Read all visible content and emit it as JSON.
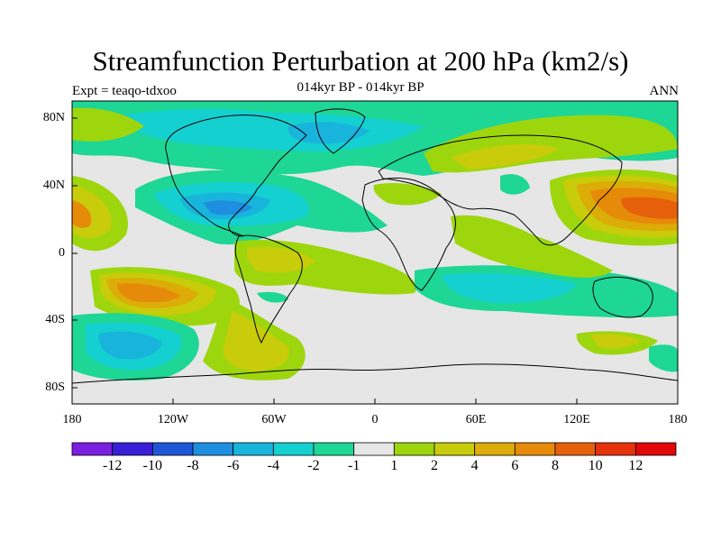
{
  "title": "Streamfunction Perturbation at 200 hPa (km2/s)",
  "subtitle": "014kyr BP - 014kyr BP",
  "experiment": "Expt = teaqo-tdxoo",
  "season": "ANN",
  "lat_labels": [
    "80N",
    "40N",
    "0",
    "40S",
    "80S"
  ],
  "lon_labels": [
    "180",
    "120W",
    "60W",
    "0",
    "60E",
    "120E",
    "180"
  ],
  "colorbar": {
    "labels": [
      "-12",
      "-10",
      "-8",
      "-6",
      "-4",
      "-2",
      "-1",
      "1",
      "2",
      "4",
      "6",
      "8",
      "10",
      "12"
    ],
    "colors": [
      "#7a1fe0",
      "#3a1fd8",
      "#1f56d8",
      "#1e8ee0",
      "#18b4dc",
      "#14d0d0",
      "#1ed696",
      "#e6e6e6",
      "#9ed60e",
      "#c8cc0a",
      "#dcac08",
      "#e68a0a",
      "#e6600c",
      "#e6320c",
      "#e00808"
    ]
  },
  "colors": {
    "neutral": "#e6e6e6",
    "coast": "#000000"
  }
}
